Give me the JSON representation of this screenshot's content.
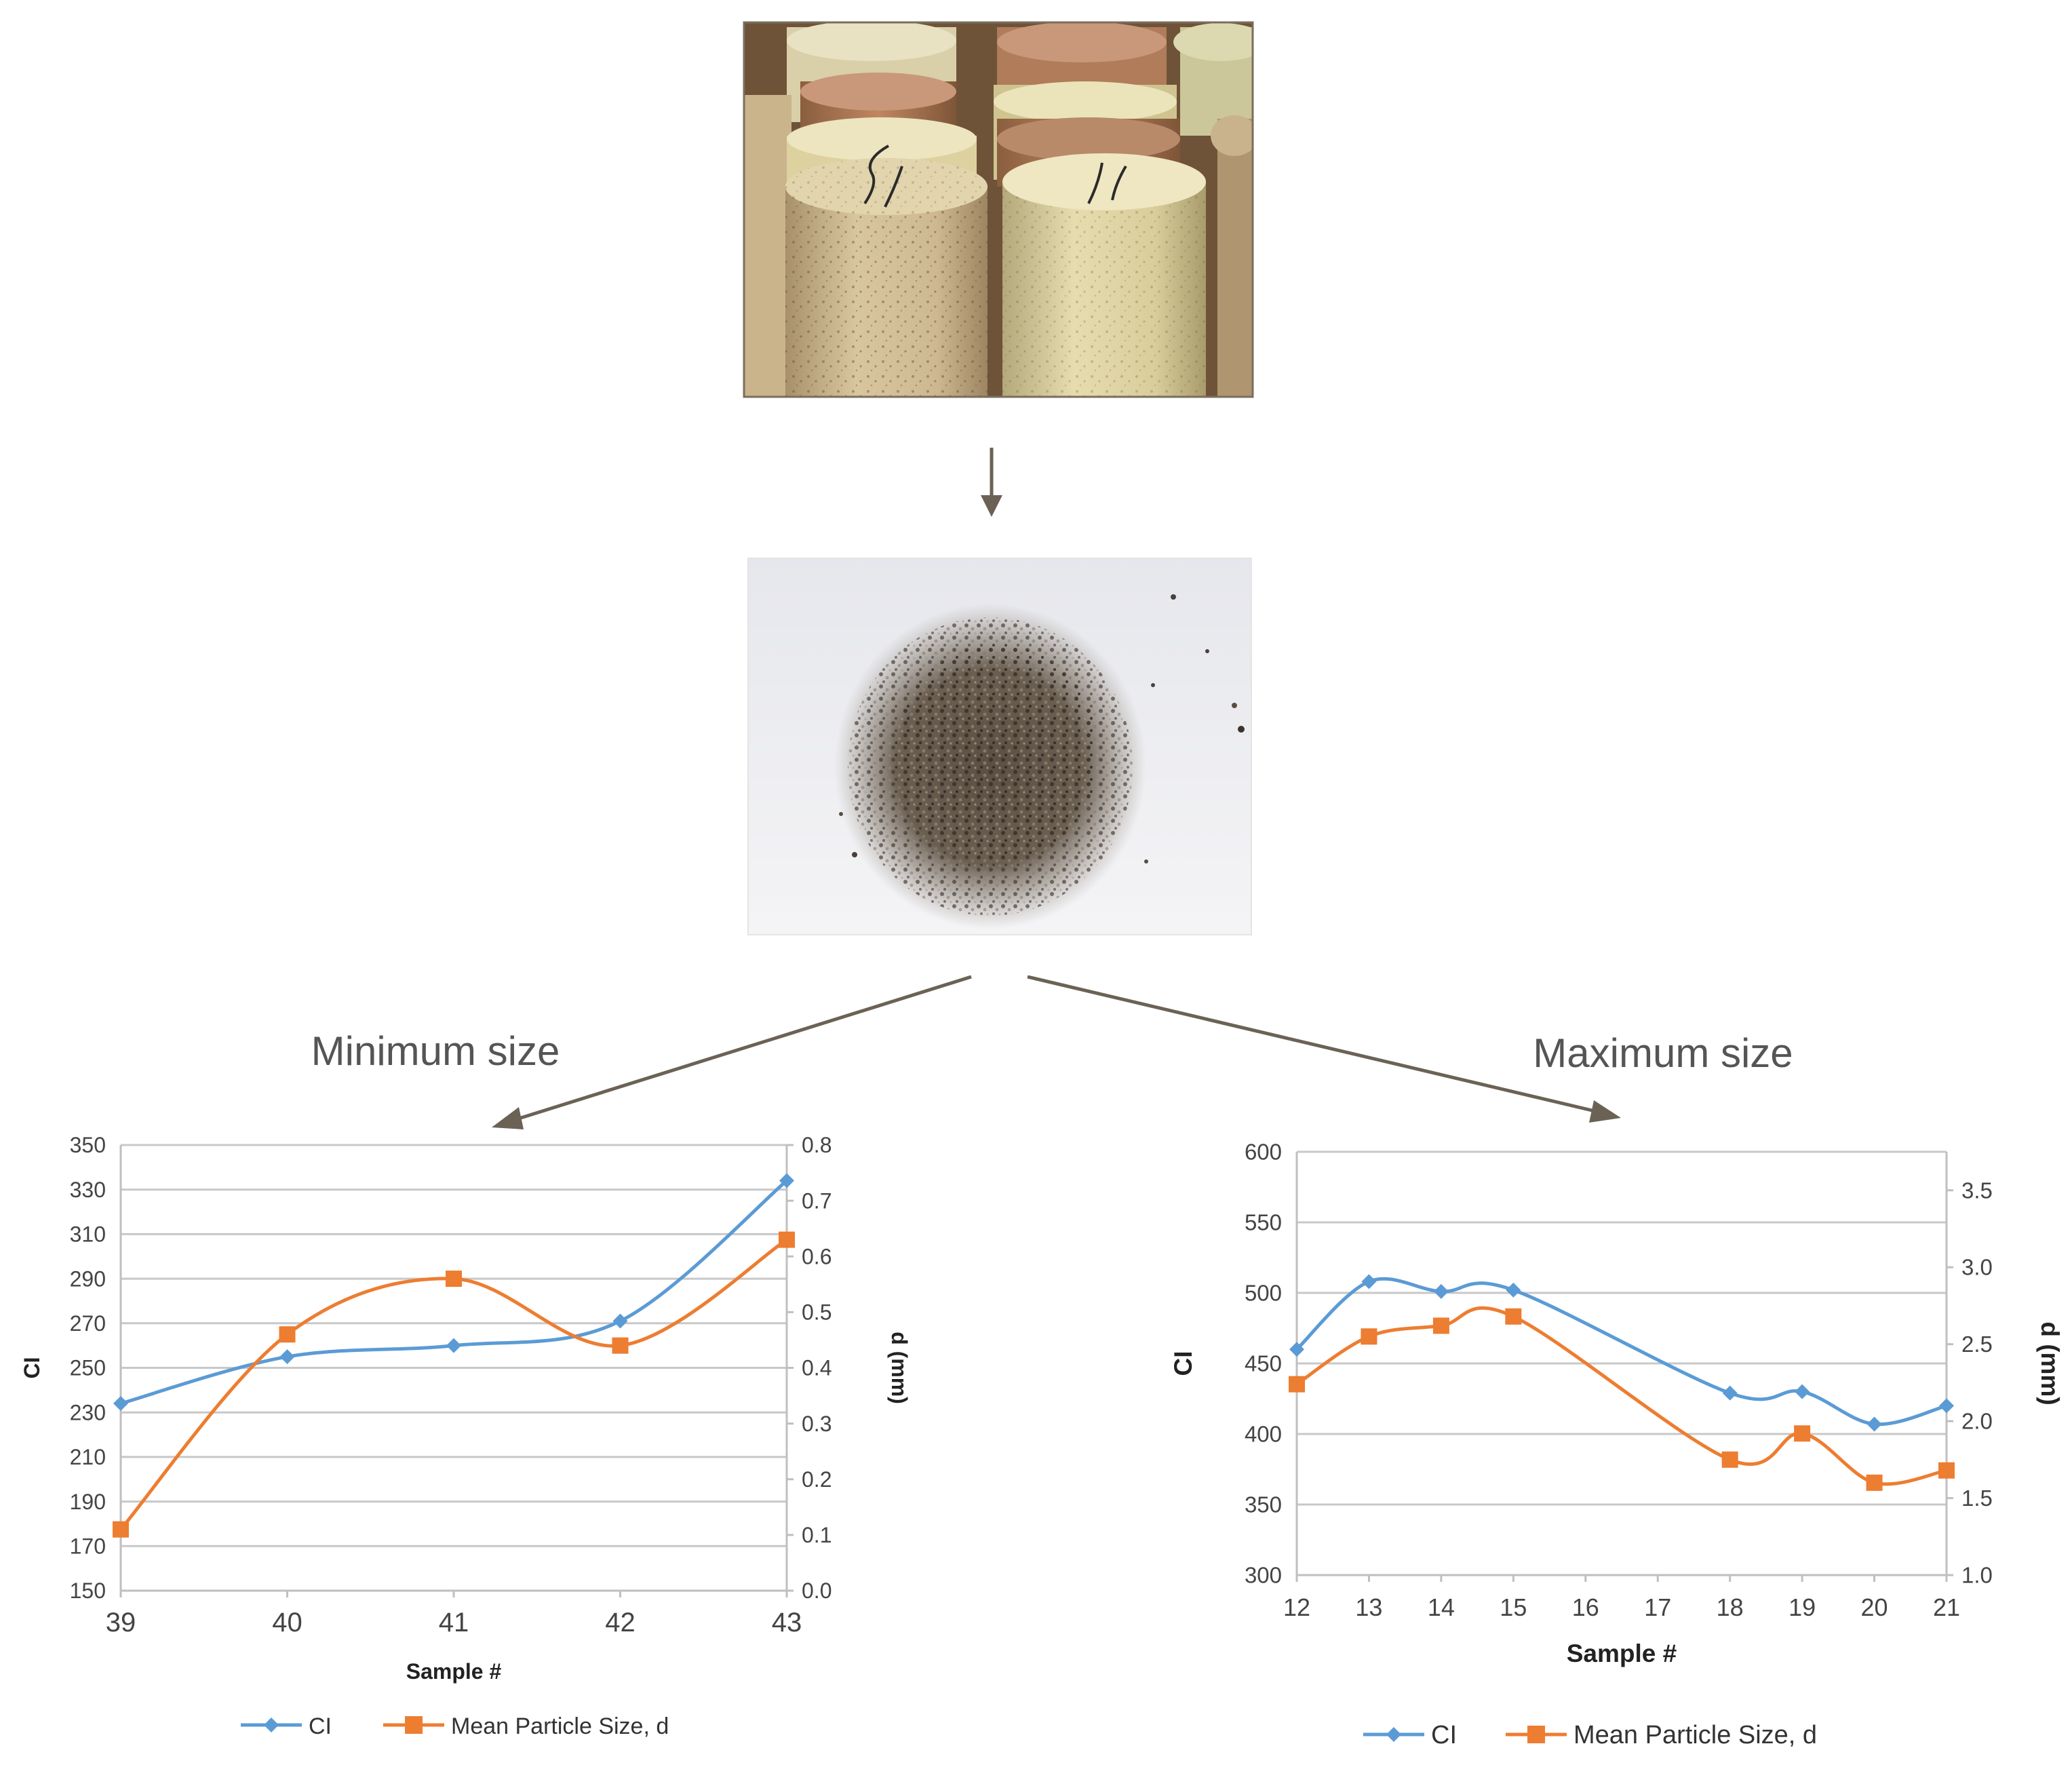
{
  "captions": {
    "min": "Minimum size",
    "max": "Maximum size"
  },
  "colors": {
    "ci": "#5b9bd5",
    "d": "#ed7d31",
    "arrow": "#6b6255"
  },
  "photos": {
    "cores": {
      "name": "sandstone-core-samples-photo"
    },
    "grains": {
      "name": "loose-sand-grains-photo"
    }
  },
  "chart_data": [
    {
      "type": "line",
      "title": "",
      "xlabel": "Sample #",
      "ylabel": "CI",
      "y2label": "d (mm)",
      "x": [
        39,
        40,
        41,
        42,
        43
      ],
      "xlim": [
        39,
        43
      ],
      "ylim": [
        150,
        350
      ],
      "y2lim": [
        0.0,
        0.8
      ],
      "y_ticks": [
        "150",
        "170",
        "190",
        "210",
        "230",
        "250",
        "270",
        "290",
        "310",
        "330",
        "350"
      ],
      "y2_ticks": [
        "0.0",
        "0.1",
        "0.2",
        "0.3",
        "0.4",
        "0.5",
        "0.6",
        "0.7",
        "0.8"
      ],
      "x_ticks": [
        "39",
        "40",
        "41",
        "42",
        "43"
      ],
      "grid": true,
      "legend_position": "bottom",
      "series": [
        {
          "name": "CI",
          "axis": "left",
          "marker": "diamond",
          "values": [
            234,
            255,
            260,
            271,
            334
          ]
        },
        {
          "name": "Mean Particle Size, d",
          "axis": "right",
          "marker": "square",
          "values": [
            0.11,
            0.46,
            0.56,
            0.44,
            0.63
          ]
        }
      ]
    },
    {
      "type": "line",
      "title": "",
      "xlabel": "Sample #",
      "ylabel": "CI",
      "y2label": "d (mm)",
      "x": [
        12,
        13,
        14,
        15,
        18,
        19,
        20,
        21
      ],
      "xlim": [
        12,
        21
      ],
      "ylim": [
        300,
        600
      ],
      "y2lim": [
        1.0,
        3.75
      ],
      "y_ticks": [
        "300",
        "350",
        "400",
        "450",
        "500",
        "550",
        "600"
      ],
      "y2_ticks": [
        "1.0",
        "1.5",
        "2.0",
        "2.5",
        "3.0",
        "3.5"
      ],
      "x_ticks": [
        "12",
        "13",
        "14",
        "15",
        "16",
        "17",
        "18",
        "19",
        "20",
        "21"
      ],
      "grid": true,
      "legend_position": "bottom",
      "series": [
        {
          "name": "CI",
          "axis": "left",
          "marker": "diamond",
          "values": [
            460,
            508,
            501,
            502,
            429,
            430,
            407,
            420
          ]
        },
        {
          "name": "Mean Particle Size, d",
          "axis": "right",
          "marker": "square",
          "values": [
            2.24,
            2.55,
            2.62,
            2.68,
            1.75,
            1.92,
            1.6,
            1.68
          ]
        }
      ]
    }
  ]
}
